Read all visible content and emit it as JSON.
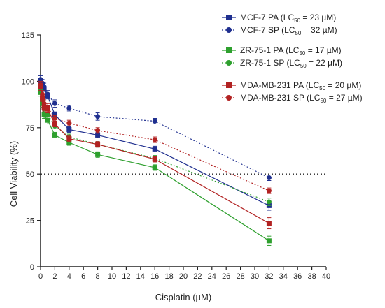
{
  "chart_data": {
    "type": "line",
    "xlabel": "Cisplatin (µM)",
    "ylabel": "Cell Viability (%)",
    "xlim": [
      0,
      40
    ],
    "ylim": [
      0,
      125
    ],
    "xticks": [
      0,
      2,
      4,
      6,
      8,
      10,
      12,
      14,
      16,
      18,
      20,
      22,
      24,
      26,
      28,
      30,
      32,
      34,
      36,
      38,
      40
    ],
    "yticks": [
      0,
      25,
      50,
      75,
      100,
      125
    ],
    "reference_line": {
      "y": 50,
      "style": "dotted"
    },
    "legend_position": "top-right",
    "series": [
      {
        "name": "MCF-7 PA",
        "lc50": "23",
        "color": "#1f2f8f",
        "marker": "square",
        "line": "solid",
        "x": [
          0,
          0.25,
          0.5,
          1,
          2,
          4,
          8,
          16,
          32
        ],
        "y": [
          100,
          98,
          96,
          92,
          82,
          74,
          71,
          63.5,
          33
        ],
        "err": [
          1.5,
          1.5,
          1.5,
          1.5,
          1.5,
          1.5,
          1.5,
          1.5,
          2.5
        ]
      },
      {
        "name": "MCF-7 SP",
        "lc50": "32",
        "color": "#1f2f8f",
        "marker": "circle",
        "line": "dotted",
        "x": [
          0,
          0.25,
          0.5,
          1,
          2,
          4,
          8,
          16,
          32
        ],
        "y": [
          101,
          99,
          97,
          93,
          88,
          85.5,
          81,
          78.5,
          48
        ],
        "err": [
          2,
          2,
          2,
          2,
          2,
          1.5,
          2,
          1.5,
          1.5
        ]
      },
      {
        "name": "ZR-75-1 PA",
        "lc50": "17",
        "color": "#2ea02e",
        "marker": "square",
        "line": "solid",
        "x": [
          0,
          0.25,
          0.5,
          1,
          2,
          4,
          8,
          16,
          32
        ],
        "y": [
          94,
          88,
          82,
          79,
          71,
          67,
          60.5,
          53.5,
          14
        ],
        "err": [
          2,
          2,
          2,
          2,
          1.5,
          1.5,
          1.5,
          1.5,
          2.5
        ]
      },
      {
        "name": "ZR-75-1 SP",
        "lc50": "22",
        "color": "#2ea02e",
        "marker": "circle",
        "line": "dotted",
        "x": [
          0,
          0.25,
          0.5,
          1,
          2,
          4,
          8,
          16,
          32
        ],
        "y": [
          96,
          90,
          86,
          82,
          76,
          70,
          66,
          58.5,
          35
        ],
        "err": [
          2,
          2,
          2,
          2,
          1.5,
          1.5,
          1.5,
          1.5,
          2
        ]
      },
      {
        "name": "MDA-MB-231 PA",
        "lc50": "20",
        "color": "#b22222",
        "marker": "square",
        "line": "solid",
        "x": [
          0,
          0.25,
          0.5,
          1,
          2,
          4,
          8,
          16,
          32
        ],
        "y": [
          97,
          91,
          86,
          85,
          77,
          69,
          66,
          58,
          23.5
        ],
        "err": [
          2,
          2,
          2,
          2,
          1.5,
          1.5,
          1.5,
          1.5,
          3
        ]
      },
      {
        "name": "MDA-MB-231 SP",
        "lc50": "27",
        "color": "#b22222",
        "marker": "circle",
        "line": "dotted",
        "x": [
          0,
          0.25,
          0.5,
          1,
          2,
          4,
          8,
          16,
          32
        ],
        "y": [
          98,
          93,
          88,
          86,
          80,
          77.5,
          73.5,
          68.5,
          41
        ],
        "err": [
          2,
          2,
          2,
          2,
          1.5,
          1.5,
          1.5,
          1.5,
          1.5
        ]
      }
    ]
  }
}
